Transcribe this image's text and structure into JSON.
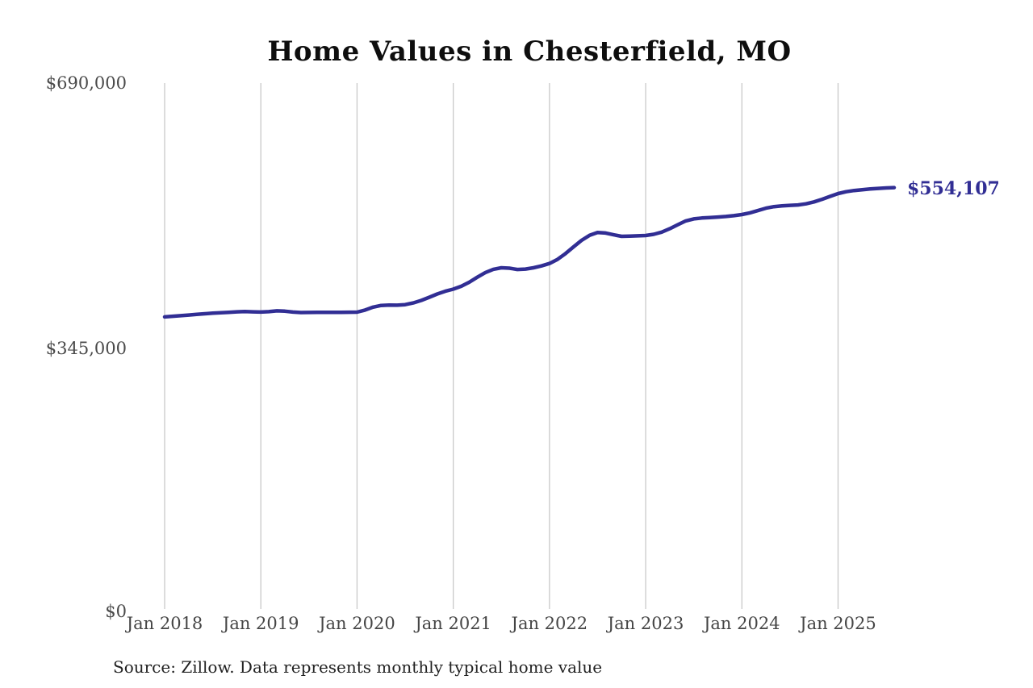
{
  "chart": {
    "title": "Home Values in Chesterfield, MO",
    "source": "Source: Zillow. Data represents monthly typical home value"
  },
  "chart_data": {
    "type": "line",
    "title": "Home Values in Chesterfield, MO",
    "subtitle": "",
    "xlabel": "",
    "ylabel": "",
    "frequency": "monthly",
    "x_start": "Jan 2018",
    "x_end": "Aug 2025",
    "x_tick_labels": [
      "Jan 2018",
      "Jan 2019",
      "Jan 2020",
      "Jan 2021",
      "Jan 2022",
      "Jan 2023",
      "Jan 2024",
      "Jan 2025"
    ],
    "months_per_tick": 12,
    "y_ticks": [
      {
        "value": 0,
        "label": "$0"
      },
      {
        "value": 345000,
        "label": "$345,000"
      },
      {
        "value": 690000,
        "label": "$690,000"
      }
    ],
    "ylim": [
      0,
      690000
    ],
    "grid": "vertical-only",
    "legend": "none",
    "end_label": "$554,107",
    "final_value": 554107,
    "series": [
      {
        "name": "Monthly typical home value",
        "values": [
          386000,
          386800,
          387600,
          388400,
          389300,
          390100,
          390800,
          391400,
          392000,
          392600,
          392900,
          392600,
          392300,
          392800,
          393900,
          393400,
          392300,
          391700,
          391800,
          392000,
          392000,
          391900,
          391900,
          392100,
          392200,
          394900,
          398700,
          400900,
          401300,
          401200,
          401900,
          404100,
          407400,
          411500,
          415800,
          419300,
          422100,
          425800,
          431100,
          437600,
          443700,
          447900,
          449900,
          449300,
          447700,
          448200,
          449900,
          452300,
          455400,
          460800,
          468300,
          477000,
          485500,
          492000,
          495800,
          495100,
          492700,
          490800,
          491100,
          491400,
          491800,
          493400,
          496200,
          500600,
          505900,
          510800,
          513400,
          514600,
          515100,
          515800,
          516600,
          517600,
          519100,
          521300,
          524200,
          527400,
          529400,
          530400,
          531000,
          531600,
          533000,
          535500,
          538900,
          542700,
          546300,
          548700,
          550300,
          551400,
          552300,
          553100,
          553700,
          554107
        ]
      }
    ],
    "line_color": "#312e94",
    "grid_color": "#c9c9c9",
    "axis_label_color": "#4a4a4a",
    "title_color": "#0e0e0e",
    "source_color": "#222222"
  }
}
